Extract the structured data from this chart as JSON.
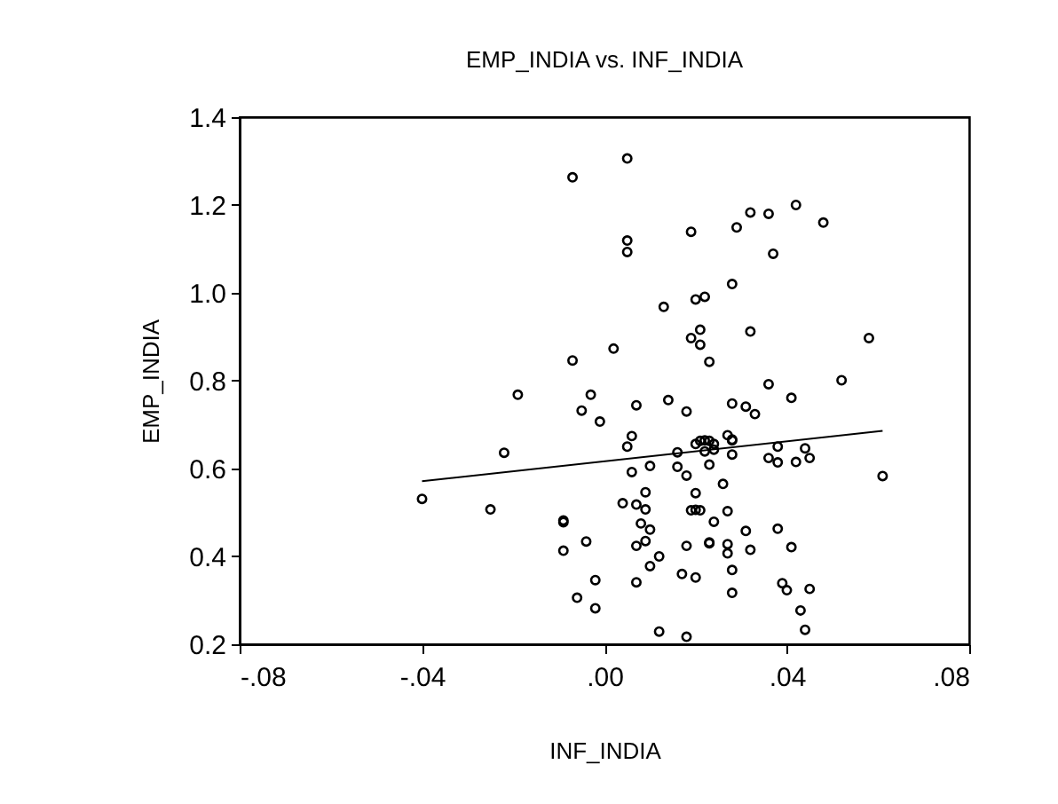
{
  "chart_data": {
    "type": "scatter",
    "title": "EMP_INDIA vs. INF_INDIA",
    "xlabel": "INF_INDIA",
    "ylabel": "EMP_INDIA",
    "marker": "circle",
    "xlim": [
      -0.08,
      0.08
    ],
    "xticks": [
      {
        "value": -0.08,
        "label": "-.08"
      },
      {
        "value": -0.04,
        "label": "-.04"
      },
      {
        "value": 0,
        "label": ".00"
      },
      {
        "value": 0.04,
        "label": ".04"
      },
      {
        "value": 0.08,
        "label": ".08"
      }
    ],
    "ylim": [
      0.2,
      1.4
    ],
    "yticks": [
      0.2,
      0.4,
      0.6,
      0.8,
      {
        "value": 1.0,
        "label": "1.0"
      },
      1.2,
      1.4
    ],
    "series": [
      {
        "color": "#000000",
        "x": [
          0.005,
          -0.007,
          0.005,
          0.005,
          0.002,
          -0.007,
          -0.019,
          -0.003,
          -0.005,
          -0.001,
          0.007,
          0.006,
          0.019,
          0.032,
          0.036,
          0.042,
          0.048,
          0.029,
          0.037,
          0.028,
          0.022,
          0.02,
          0.013,
          0.021,
          0.019,
          0.021,
          0.032,
          0.058,
          0.023,
          0.036,
          0.052,
          0.041,
          0.014,
          0.018,
          0.028,
          0.031,
          0.033,
          0.027,
          0.021,
          0.022,
          0.028,
          0.005,
          -0.022,
          0.006,
          -0.04,
          -0.025,
          0.004,
          0.007,
          -0.009,
          -0.009,
          -0.004,
          -0.009,
          -0.002,
          0.007,
          -0.006,
          -0.002,
          0.016,
          0.02,
          0.023,
          0.024,
          0.022,
          0.024,
          0.028,
          0.028,
          0.038,
          0.036,
          0.038,
          0.044,
          0.045,
          0.042,
          0.061,
          0.01,
          0.016,
          0.018,
          0.023,
          0.026,
          0.009,
          0.02,
          0.009,
          0.019,
          0.02,
          0.021,
          0.027,
          0.024,
          0.008,
          0.01,
          0.031,
          0.038,
          0.009,
          0.007,
          0.018,
          0.023,
          0.023,
          0.027,
          0.027,
          0.032,
          0.041,
          0.012,
          0.01,
          0.028,
          0.017,
          0.02,
          0.039,
          0.04,
          0.045,
          0.028,
          0.043,
          0.012,
          0.018,
          0.044
        ],
        "values": [
          1.306,
          1.263,
          1.119,
          1.093,
          0.873,
          0.846,
          0.768,
          0.768,
          0.732,
          0.707,
          0.744,
          0.674,
          1.139,
          1.183,
          1.18,
          1.2,
          1.16,
          1.149,
          1.089,
          1.02,
          0.991,
          0.985,
          0.968,
          0.916,
          0.897,
          0.882,
          0.912,
          0.897,
          0.843,
          0.792,
          0.801,
          0.761,
          0.756,
          0.73,
          0.748,
          0.741,
          0.724,
          0.676,
          0.663,
          0.664,
          0.664,
          0.65,
          0.636,
          0.592,
          0.531,
          0.507,
          0.521,
          0.518,
          0.478,
          0.482,
          0.434,
          0.413,
          0.346,
          0.341,
          0.306,
          0.282,
          0.637,
          0.656,
          0.663,
          0.656,
          0.639,
          0.643,
          0.666,
          0.632,
          0.65,
          0.624,
          0.614,
          0.646,
          0.624,
          0.615,
          0.583,
          0.606,
          0.604,
          0.584,
          0.609,
          0.565,
          0.546,
          0.544,
          0.507,
          0.505,
          0.506,
          0.505,
          0.503,
          0.479,
          0.475,
          0.461,
          0.458,
          0.463,
          0.435,
          0.424,
          0.424,
          0.432,
          0.43,
          0.428,
          0.407,
          0.415,
          0.421,
          0.4,
          0.378,
          0.369,
          0.36,
          0.352,
          0.339,
          0.323,
          0.326,
          0.317,
          0.277,
          0.229,
          0.217,
          0.233
        ]
      },
      {
        "type": "line",
        "color": "#000000",
        "marker": "none",
        "x": [
          -0.04,
          0.061
        ],
        "values": [
          0.571,
          0.686
        ]
      }
    ]
  }
}
